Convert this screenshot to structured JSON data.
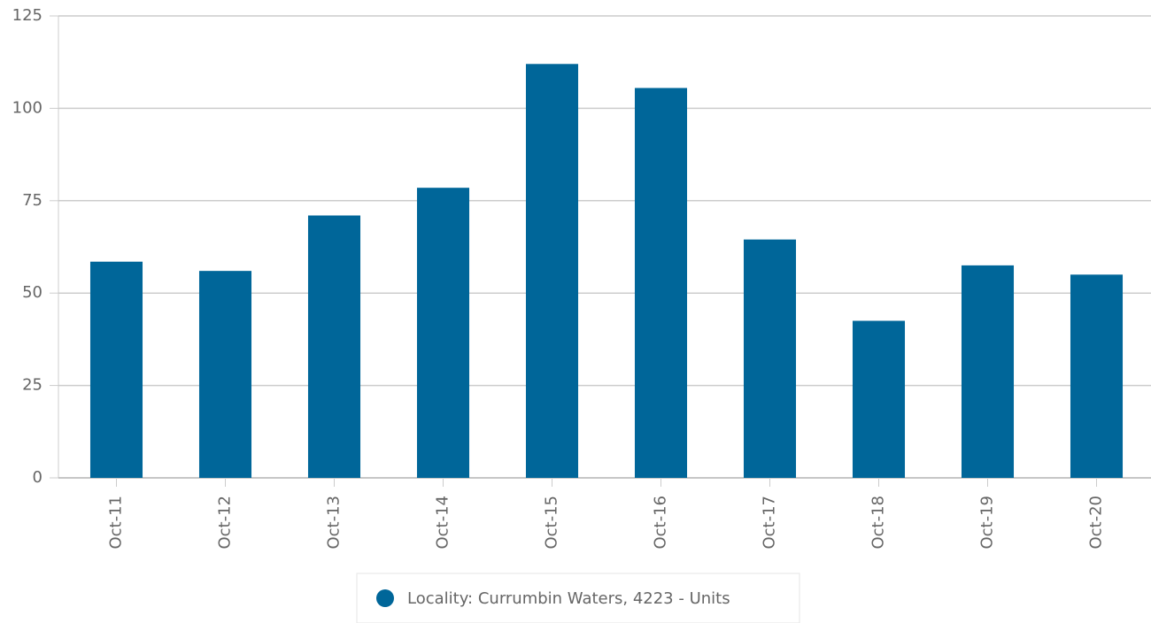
{
  "chart_data": {
    "type": "bar",
    "categories": [
      "Oct-11",
      "Oct-12",
      "Oct-13",
      "Oct-14",
      "Oct-15",
      "Oct-16",
      "Oct-17",
      "Oct-18",
      "Oct-19",
      "Oct-20"
    ],
    "series": [
      {
        "name": "Locality: Currumbin Waters, 4223 - Units",
        "color": "#006699",
        "values": [
          58.5,
          56,
          71,
          78.5,
          112,
          105.5,
          64.5,
          42.5,
          57.5,
          55
        ]
      }
    ],
    "ylim": [
      0,
      125
    ],
    "yticks": [
      0,
      25,
      50,
      75,
      100,
      125
    ],
    "grid": true,
    "legend": "bottom"
  }
}
